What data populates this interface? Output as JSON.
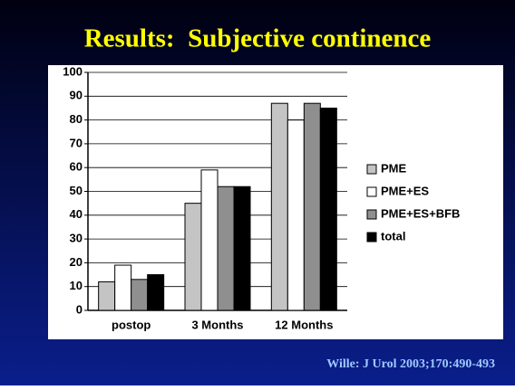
{
  "title": "Results:  Subjective continence",
  "citation": "Wille: J Urol 2003;170:490-493",
  "chart_data": {
    "type": "bar",
    "categories": [
      "postop",
      "3 Months",
      "12 Months"
    ],
    "series": [
      {
        "name": "PME",
        "color": "#c4c4c4",
        "values": [
          12,
          45,
          87
        ]
      },
      {
        "name": "PME+ES",
        "color": "#ffffff",
        "values": [
          19,
          59,
          80
        ]
      },
      {
        "name": "PME+ES+BFB",
        "color": "#8f8f8f",
        "values": [
          13,
          52,
          87
        ]
      },
      {
        "name": "total",
        "color": "#000000",
        "values": [
          15,
          52,
          85
        ]
      }
    ],
    "ylim": [
      0,
      100
    ],
    "yticks": [
      0,
      10,
      20,
      30,
      40,
      50,
      60,
      70,
      80,
      90,
      100
    ],
    "grid": true,
    "legend": "right"
  }
}
